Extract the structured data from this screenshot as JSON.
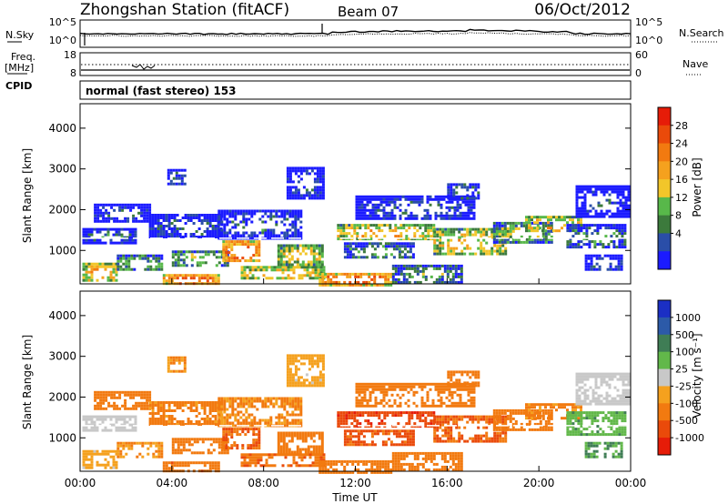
{
  "header": {
    "title": "Zhongshan Station (fitACF)",
    "beam": "Beam 07",
    "date": "06/Oct/2012"
  },
  "top_panels": {
    "nsky_label": "N.Sky",
    "nsky_ticks": [
      "10^5",
      "10^0"
    ],
    "nsearch_label": "N.Search",
    "nsearch_ticks": [
      "10^5",
      "10^0"
    ],
    "freq_label": "Freq.",
    "freq_unit": "[MHz]",
    "freq_ticks": [
      "18",
      "8"
    ],
    "nave_label": "Nave",
    "nave_ticks": [
      "60",
      "0"
    ],
    "cpid_label": "CPID",
    "cpid_text": "normal (fast stereo) 153"
  },
  "colors": {
    "power": [
      "#1b1bff",
      "#2a4ea8",
      "#3c7a3c",
      "#58b84a",
      "#f2c62a",
      "#f5a11e",
      "#f27a10",
      "#ea4a0a",
      "#e61c08"
    ],
    "velocity": [
      "#1b2fc4",
      "#2c5aa8",
      "#3f7d55",
      "#62b84a",
      "#c8c8c8",
      "#f5a11e",
      "#f27a10",
      "#ea4a0a",
      "#e61c08"
    ]
  },
  "chart_data": [
    {
      "type": "heatmap",
      "name": "power",
      "ylabel": "Slant Range [km]",
      "xlabel": "Time UT",
      "x_ticks": [
        "00:00",
        "04:00",
        "08:00",
        "12:00",
        "16:00",
        "20:00",
        "00:00"
      ],
      "xlim_hours": [
        0,
        24
      ],
      "ylim_km": [
        180,
        4600
      ],
      "y_ticks": [
        1000,
        2000,
        3000,
        4000
      ],
      "colorbar_label": "Power [dB]",
      "colorbar_ticks": [
        "28",
        "24",
        "20",
        "16",
        "12",
        "8",
        "4"
      ],
      "colorbar_range": [
        0,
        30
      ]
    },
    {
      "type": "heatmap",
      "name": "velocity",
      "ylabel": "Slant Range [km]",
      "xlabel": "Time UT",
      "x_ticks": [
        "00:00",
        "04:00",
        "08:00",
        "12:00",
        "16:00",
        "20:00",
        "00:00"
      ],
      "xlim_hours": [
        0,
        24
      ],
      "ylim_km": [
        180,
        4600
      ],
      "y_ticks": [
        1000,
        2000,
        3000,
        4000
      ],
      "colorbar_label": "Velocity [m s⁻¹]",
      "colorbar_ticks": [
        "1000",
        "500",
        "100",
        "25",
        "-25",
        "-100",
        "-500",
        "-1000"
      ]
    }
  ],
  "echo_regions": [
    {
      "t0": 0.1,
      "t1": 2.4,
      "r0": 1200,
      "r1": 1550,
      "p": 9,
      "v": 1
    },
    {
      "t0": 0.1,
      "t1": 1.6,
      "r0": 250,
      "r1": 700,
      "p": 21,
      "v": -40
    },
    {
      "t0": 0.6,
      "t1": 3.0,
      "r0": 1700,
      "r1": 2150,
      "p": 7,
      "v": -180
    },
    {
      "t0": 1.6,
      "t1": 3.6,
      "r0": 500,
      "r1": 900,
      "p": 14,
      "v": -60
    },
    {
      "t0": 3.6,
      "t1": 6.0,
      "r0": 180,
      "r1": 420,
      "p": 26,
      "v": -220
    },
    {
      "t0": 4.0,
      "t1": 6.4,
      "r0": 600,
      "r1": 1000,
      "p": 15,
      "v": -160
    },
    {
      "t0": 3.0,
      "t1": 6.2,
      "r0": 1350,
      "r1": 1900,
      "p": 8,
      "v": -90
    },
    {
      "t0": 6.2,
      "t1": 7.8,
      "r0": 750,
      "r1": 1250,
      "p": 26,
      "v": -300
    },
    {
      "t0": 6.0,
      "t1": 9.6,
      "r0": 1300,
      "r1": 2000,
      "p": 8,
      "v": -70
    },
    {
      "t0": 7.0,
      "t1": 10.6,
      "r0": 300,
      "r1": 620,
      "p": 20,
      "v": -250
    },
    {
      "t0": 8.6,
      "t1": 10.6,
      "r0": 650,
      "r1": 1150,
      "p": 18,
      "v": -200
    },
    {
      "t0": 10.4,
      "t1": 13.6,
      "r0": 180,
      "r1": 450,
      "p": 26,
      "v": -160
    },
    {
      "t0": 11.2,
      "t1": 15.4,
      "r0": 1250,
      "r1": 1650,
      "p": 20,
      "v": -600
    },
    {
      "t0": 11.5,
      "t1": 14.5,
      "r0": 800,
      "r1": 1200,
      "p": 12,
      "v": -400
    },
    {
      "t0": 12.0,
      "t1": 17.2,
      "r0": 1750,
      "r1": 2350,
      "p": 7,
      "v": -200
    },
    {
      "t0": 13.6,
      "t1": 16.6,
      "r0": 200,
      "r1": 650,
      "p": 12,
      "v": -130
    },
    {
      "t0": 15.4,
      "t1": 18.6,
      "r0": 900,
      "r1": 1550,
      "p": 19,
      "v": -320
    },
    {
      "t0": 18.0,
      "t1": 20.6,
      "r0": 1200,
      "r1": 1700,
      "p": 15,
      "v": -200
    },
    {
      "t0": 19.4,
      "t1": 21.8,
      "r0": 1450,
      "r1": 1850,
      "p": 20,
      "v": -80
    },
    {
      "t0": 21.2,
      "t1": 23.8,
      "r0": 1050,
      "r1": 1650,
      "p": 11,
      "v": 45
    },
    {
      "t0": 21.6,
      "t1": 23.9,
      "r0": 1850,
      "r1": 2600,
      "p": 6,
      "v": 10
    },
    {
      "t0": 22.0,
      "t1": 23.6,
      "r0": 500,
      "r1": 900,
      "p": 7,
      "v": 60
    },
    {
      "t0": 3.8,
      "t1": 4.6,
      "r0": 2600,
      "r1": 3000,
      "p": 9,
      "v": -50
    },
    {
      "t0": 9.0,
      "t1": 10.6,
      "r0": 2300,
      "r1": 3050,
      "p": 7,
      "v": -40
    },
    {
      "t0": 16.0,
      "t1": 17.4,
      "r0": 2300,
      "r1": 2650,
      "p": 10,
      "v": -150
    }
  ]
}
